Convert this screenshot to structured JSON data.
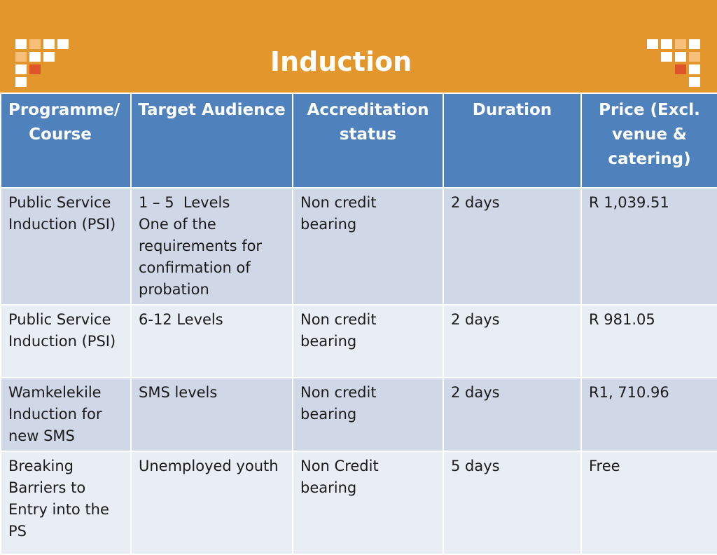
{
  "slide": {
    "title": "Induction",
    "colors": {
      "header_bg": "#E3962B",
      "table_header_bg": "#4F81BD",
      "row_odd": "#D0D8E8",
      "row_even": "#E9EDF4",
      "deco_orange": "#F2A541",
      "deco_red": "#E0542A"
    }
  },
  "table": {
    "headers": [
      {
        "lines": [
          "Programme/",
          "Course"
        ]
      },
      {
        "lines": [
          "Target Audience"
        ]
      },
      {
        "lines": [
          "Accreditation",
          "status"
        ]
      },
      {
        "lines": [
          "Duration"
        ]
      },
      {
        "lines": [
          "Price (Excl.",
          "venue &",
          "catering)"
        ]
      }
    ],
    "rows": [
      {
        "programme": [
          "Public Service",
          "Induction (PSI)"
        ],
        "audience": [
          "1 – 5  Levels",
          "One of the",
          "requirements for",
          "confirmation of",
          "probation"
        ],
        "accreditation": [
          "Non credit",
          "bearing"
        ],
        "duration": "2 days",
        "price": "R 1,039.51"
      },
      {
        "programme": [
          "Public Service",
          "Induction (PSI)"
        ],
        "audience": [
          "6-12 Levels"
        ],
        "accreditation": [
          "Non credit",
          "bearing"
        ],
        "duration": "2 days",
        "price": "R 981.05"
      },
      {
        "programme": [
          "Wamkelekile",
          "Induction for",
          "new SMS"
        ],
        "audience": [
          "SMS levels"
        ],
        "accreditation": [
          "Non credit",
          "bearing"
        ],
        "duration": "2 days",
        "price": "R1, 710.96"
      },
      {
        "programme": [
          "Breaking",
          "Barriers to",
          "Entry into the",
          "PS"
        ],
        "audience": [
          "Unemployed youth"
        ],
        "accreditation": [
          "Non Credit",
          "bearing"
        ],
        "duration": "5 days",
        "price": "Free"
      }
    ]
  }
}
